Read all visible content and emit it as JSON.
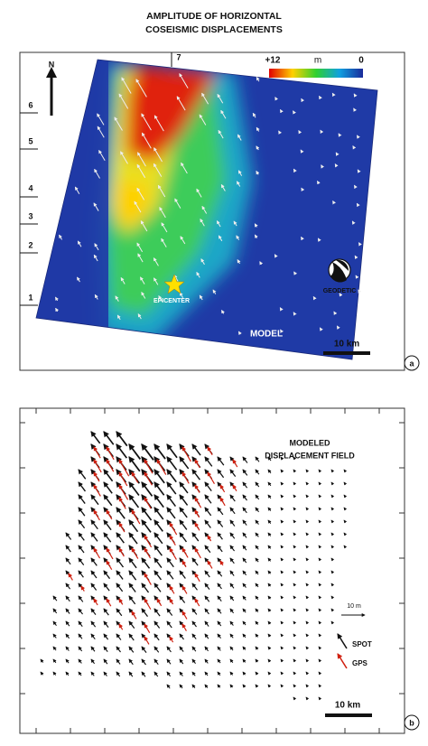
{
  "panel_a": {
    "title": [
      "AMPLITUDE OF HORIZONTAL",
      "COSEISMIC DISPLACEMENTS"
    ],
    "colorbar": {
      "max_label": "+12",
      "unit": "m",
      "min_label": "0"
    },
    "north": "N",
    "left_ticks": [
      "6",
      "5",
      "4",
      "3",
      "2",
      "1"
    ],
    "top_tick": "7",
    "epicenter": "EPICENTER",
    "mechanism": "GEODETIC",
    "model": "MODEL",
    "scale": "10 km",
    "letter": "a"
  },
  "panel_b": {
    "title": [
      "MODELED",
      "DISPLACEMENT FIELD"
    ],
    "arrow_scale": "10 m",
    "legend": [
      "SPOT",
      "GPS"
    ],
    "scale": "10 km",
    "letter": "b"
  }
}
